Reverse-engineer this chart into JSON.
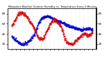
{
  "title": "Milwaukee Weather Outdoor Humidity vs. Temperature Every 5 Minutes",
  "bg_color": "#ffffff",
  "grid_color": "#c8c8c8",
  "red_color": "#dd0000",
  "blue_color": "#0000cc",
  "ylim_left": [
    10,
    90
  ],
  "ylim_right": [
    10,
    90
  ],
  "n_points": 300,
  "temp_control_x": [
    0.0,
    0.05,
    0.1,
    0.18,
    0.22,
    0.28,
    0.33,
    0.38,
    0.43,
    0.48,
    0.52,
    0.57,
    0.62,
    0.66,
    0.7,
    0.75,
    0.8,
    0.85,
    0.9,
    0.95,
    1.0
  ],
  "temp_control_y": [
    55,
    70,
    82,
    75,
    65,
    50,
    32,
    30,
    45,
    62,
    68,
    62,
    50,
    30,
    22,
    20,
    28,
    35,
    40,
    38,
    42
  ],
  "hum_control_x": [
    0.0,
    0.05,
    0.1,
    0.15,
    0.2,
    0.28,
    0.33,
    0.38,
    0.43,
    0.48,
    0.53,
    0.58,
    0.63,
    0.68,
    0.73,
    0.78,
    0.83,
    0.88,
    0.93,
    1.0
  ],
  "hum_control_y": [
    35,
    28,
    22,
    20,
    25,
    40,
    60,
    72,
    75,
    72,
    68,
    65,
    62,
    58,
    55,
    52,
    50,
    48,
    50,
    48
  ]
}
